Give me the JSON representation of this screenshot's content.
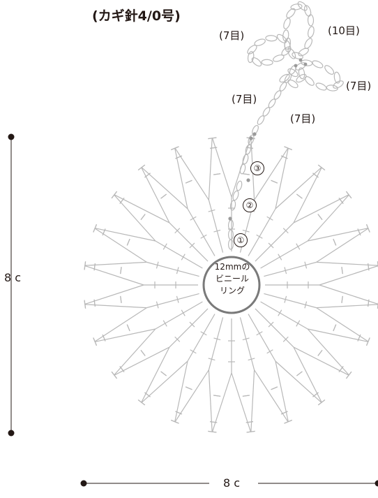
{
  "title": "(カギ針4/0号)",
  "petal_labels": [
    "(7目)",
    "(10目)",
    "(7目)",
    "(7目)",
    "(7目)"
  ],
  "ring_label": [
    "12mmの",
    "ビニール",
    "リング"
  ],
  "round_markers": [
    "①",
    "②",
    "③"
  ],
  "dimensions": {
    "height": "8 c",
    "width": "8 c"
  },
  "colors": {
    "stitch": "#b8b8b8",
    "ink": "#231815",
    "ring": "#7a7a7a"
  }
}
